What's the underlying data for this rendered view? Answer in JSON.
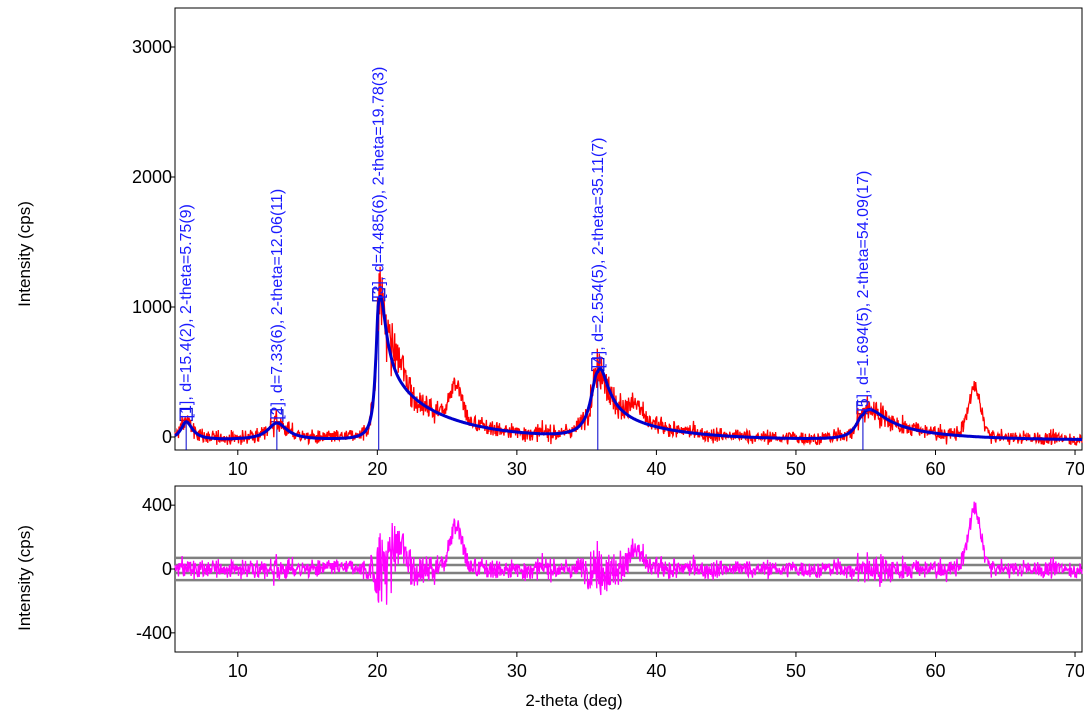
{
  "chart_data": [
    {
      "type": "line",
      "panel": "main",
      "ylabel": "Intensity (cps)",
      "xlim": [
        5.5,
        70.5
      ],
      "ylim": [
        -100,
        3300
      ],
      "x_ticks": [
        10,
        20,
        30,
        40,
        50,
        60,
        70
      ],
      "x_tick_labels": [
        "10",
        "20",
        "30",
        "40",
        "50",
        "60",
        "70"
      ],
      "y_ticks": [
        0,
        1000,
        2000,
        3000
      ],
      "y_tick_labels": [
        "0",
        "1000",
        "2000",
        "3000"
      ],
      "colors": {
        "observed": "#ff0000",
        "fit": "#0000cc",
        "peaks": "#0000cc",
        "label": "#1a1aff"
      },
      "peaks": [
        {
          "label": "[1], d=15.4(2), 2-theta=5.75(9)",
          "two_theta": 6.3,
          "height": 140,
          "hwhm_left": 0.45,
          "hwhm_right": 0.55,
          "tail": 0.0
        },
        {
          "label": "[2], d=7.33(6), 2-theta=12.06(11)",
          "two_theta": 12.8,
          "height": 130,
          "hwhm_left": 0.8,
          "hwhm_right": 0.9,
          "tail": 0.0
        },
        {
          "label": "[3], d=4.485(6), 2-theta=19.78(3)",
          "two_theta": 20.1,
          "height": 1060,
          "hwhm_left": 0.25,
          "hwhm_right": 0.6,
          "tail": 480
        },
        {
          "label": "[4], d=2.554(5), 2-theta=35.11(7)",
          "two_theta": 35.8,
          "height": 510,
          "hwhm_left": 0.6,
          "hwhm_right": 0.8,
          "tail": 200
        },
        {
          "label": "[5], d=1.694(5), 2-theta=54.09(17)",
          "two_theta": 54.8,
          "height": 190,
          "hwhm_left": 0.6,
          "hwhm_right": 1.5,
          "tail": 120
        }
      ],
      "extra_observed_peaks": [
        {
          "two_theta": 25.6,
          "height": 280
        },
        {
          "two_theta": 62.8,
          "height": 360
        },
        {
          "two_theta": 21.5,
          "height": 160
        },
        {
          "two_theta": 38.5,
          "height": 120
        }
      ]
    },
    {
      "type": "line",
      "panel": "residual",
      "xlabel": "2-theta (deg)",
      "ylabel": "Intensity (cps)",
      "xlim": [
        5.5,
        70.5
      ],
      "ylim": [
        -520,
        520
      ],
      "x_ticks": [
        10,
        20,
        30,
        40,
        50,
        60,
        70
      ],
      "x_tick_labels": [
        "10",
        "20",
        "30",
        "40",
        "50",
        "60",
        "70"
      ],
      "y_ticks": [
        -400,
        0,
        400
      ],
      "y_tick_labels": [
        "-400",
        "0",
        "400"
      ],
      "esd_bands": [
        70,
        25
      ],
      "colors": {
        "residual": "#ff00ff",
        "bands": "#808080"
      }
    }
  ]
}
